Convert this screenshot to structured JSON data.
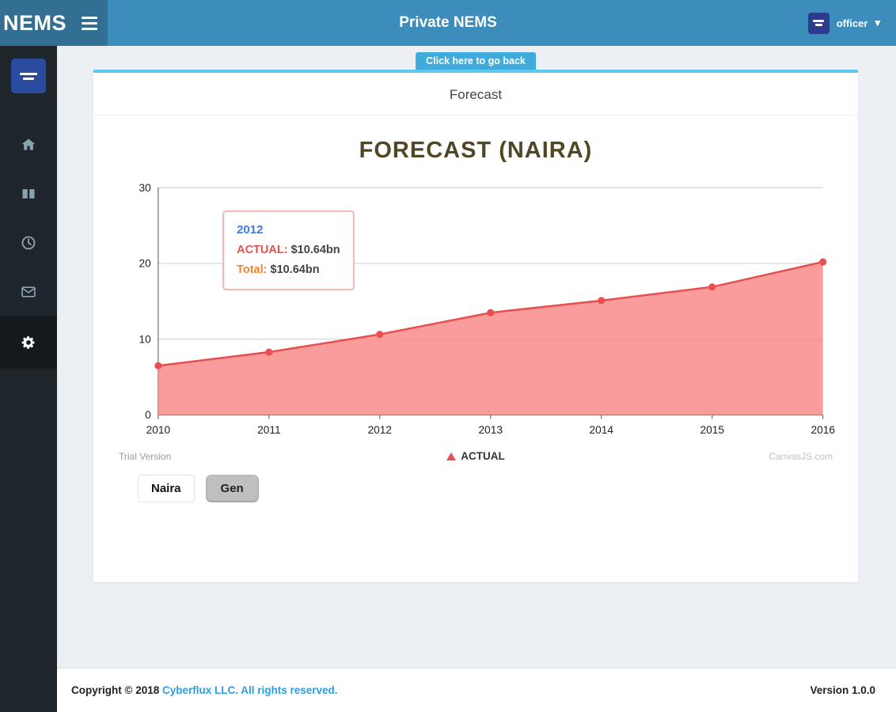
{
  "colors": {
    "header": "#3c8dbc",
    "header_dark": "#336f93",
    "sidebar": "#1f262b",
    "sidebar_active": "#14191d",
    "content_bg": "#ecf0f5",
    "card_top_border": "#5ec8ee",
    "back_button": "#3fabdc",
    "link": "#2d9ddb",
    "chart_title": "#514724",
    "series_line": "#e8504f",
    "series_fill": "#f98b8b",
    "tooltip_border": "#f3b9b7"
  },
  "header": {
    "brand": "NEMS",
    "title": "Private NEMS",
    "user": "officer",
    "caret": "▾"
  },
  "sidebar": {
    "items": [
      {
        "icon": "home-icon"
      },
      {
        "icon": "book-icon"
      },
      {
        "icon": "clock-icon"
      },
      {
        "icon": "envelope-icon"
      },
      {
        "icon": "gears-icon",
        "active": true
      }
    ]
  },
  "content": {
    "back_button": "Click here to go back",
    "card_title": "Forecast",
    "currency_button": "Naira",
    "gen_button": "Gen"
  },
  "chart_data": {
    "type": "area",
    "title": "FORECAST (NAIRA)",
    "x": [
      2010,
      2011,
      2012,
      2013,
      2014,
      2015,
      2016
    ],
    "series": [
      {
        "name": "ACTUAL",
        "values": [
          6.5,
          8.3,
          10.64,
          13.5,
          15.1,
          16.9,
          20.2
        ]
      }
    ],
    "ylim": [
      0,
      30
    ],
    "yticks": [
      0,
      10,
      20,
      30
    ],
    "grid": true,
    "legend_position": "bottom",
    "tooltip": {
      "year": "2012",
      "series_label": "ACTUAL:",
      "series_value": "$10.64bn",
      "total_label": "Total:",
      "total_value": "$10.64bn"
    },
    "watermark_left": "Trial Version",
    "watermark_right": "CanvasJS.com",
    "colors": {
      "line": "#e8504f",
      "fill": "#f98b8b"
    }
  },
  "footer": {
    "copyright_prefix": "Copyright © 2018 ",
    "copyright_link": "Cyberflux LLC. All rights reserved.",
    "version": "Version 1.0.0"
  }
}
